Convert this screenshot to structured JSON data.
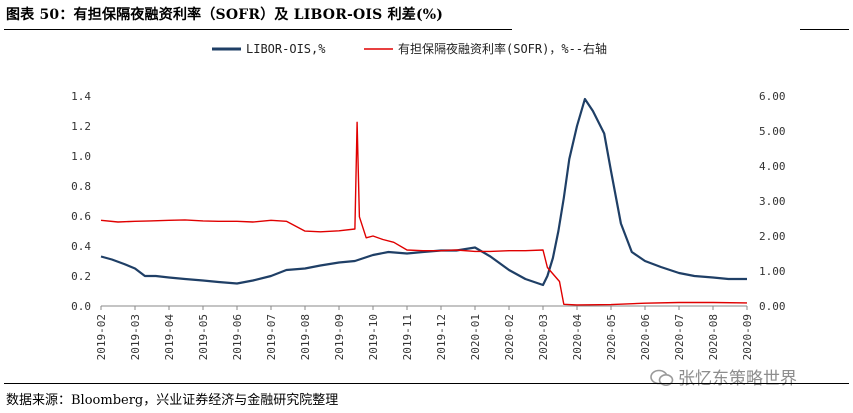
{
  "header": {
    "title": "图表 50：有担保隔夜融资利率（SOFR）及 LIBOR-OIS 利差(%)"
  },
  "footer": {
    "source": "数据来源：Bloomberg，兴业证券经济与金融研究院整理",
    "watermark": "张忆东策略世界"
  },
  "chart_data": {
    "type": "line",
    "legend_position": "top",
    "grid": false,
    "x_ticks": [
      "2019-02",
      "2019-03",
      "2019-04",
      "2019-05",
      "2019-06",
      "2019-07",
      "2019-08",
      "2019-09",
      "2019-10",
      "2019-11",
      "2019-12",
      "2020-01",
      "2020-02",
      "2020-03",
      "2020-04",
      "2020-05",
      "2020-06",
      "2020-07",
      "2020-08",
      "2020-09"
    ],
    "y_left": {
      "ticks": [
        "0.0",
        "0.2",
        "0.4",
        "0.6",
        "0.8",
        "1.0",
        "1.2",
        "1.4"
      ],
      "lim": [
        0,
        1.4
      ]
    },
    "y_right": {
      "ticks": [
        "0.00",
        "1.00",
        "2.00",
        "3.00",
        "4.00",
        "5.00",
        "6.00"
      ],
      "lim": [
        0,
        6
      ]
    },
    "series": [
      {
        "name": "LIBOR-OIS,%",
        "axis": "left",
        "color": "#1f3f66",
        "points": [
          [
            "2019-02-01",
            0.33
          ],
          [
            "2019-02-10",
            0.31
          ],
          [
            "2019-02-20",
            0.28
          ],
          [
            "2019-03-01",
            0.25
          ],
          [
            "2019-03-10",
            0.2
          ],
          [
            "2019-03-20",
            0.2
          ],
          [
            "2019-04-01",
            0.19
          ],
          [
            "2019-04-15",
            0.18
          ],
          [
            "2019-05-01",
            0.17
          ],
          [
            "2019-05-15",
            0.16
          ],
          [
            "2019-06-01",
            0.15
          ],
          [
            "2019-06-15",
            0.17
          ],
          [
            "2019-07-01",
            0.2
          ],
          [
            "2019-07-15",
            0.24
          ],
          [
            "2019-08-01",
            0.25
          ],
          [
            "2019-08-15",
            0.27
          ],
          [
            "2019-09-01",
            0.29
          ],
          [
            "2019-09-15",
            0.3
          ],
          [
            "2019-10-01",
            0.34
          ],
          [
            "2019-10-15",
            0.36
          ],
          [
            "2019-11-01",
            0.35
          ],
          [
            "2019-11-15",
            0.36
          ],
          [
            "2019-12-01",
            0.37
          ],
          [
            "2019-12-15",
            0.37
          ],
          [
            "2020-01-01",
            0.39
          ],
          [
            "2020-01-15",
            0.33
          ],
          [
            "2020-02-01",
            0.24
          ],
          [
            "2020-02-15",
            0.18
          ],
          [
            "2020-03-01",
            0.14
          ],
          [
            "2020-03-05",
            0.2
          ],
          [
            "2020-03-10",
            0.32
          ],
          [
            "2020-03-15",
            0.5
          ],
          [
            "2020-03-20",
            0.72
          ],
          [
            "2020-03-25",
            0.98
          ],
          [
            "2020-04-01",
            1.2
          ],
          [
            "2020-04-08",
            1.38
          ],
          [
            "2020-04-15",
            1.3
          ],
          [
            "2020-04-25",
            1.15
          ],
          [
            "2020-05-01",
            0.9
          ],
          [
            "2020-05-10",
            0.55
          ],
          [
            "2020-05-20",
            0.36
          ],
          [
            "2020-06-01",
            0.3
          ],
          [
            "2020-06-15",
            0.26
          ],
          [
            "2020-07-01",
            0.22
          ],
          [
            "2020-07-15",
            0.2
          ],
          [
            "2020-08-01",
            0.19
          ],
          [
            "2020-08-15",
            0.18
          ],
          [
            "2020-09-01",
            0.18
          ]
        ]
      },
      {
        "name": "有担保隔夜融资利率(SOFR)，%--右轴",
        "axis": "right",
        "color": "#e00000",
        "points": [
          [
            "2019-02-01",
            2.45
          ],
          [
            "2019-02-15",
            2.4
          ],
          [
            "2019-03-01",
            2.42
          ],
          [
            "2019-03-15",
            2.43
          ],
          [
            "2019-04-01",
            2.45
          ],
          [
            "2019-04-15",
            2.46
          ],
          [
            "2019-05-01",
            2.43
          ],
          [
            "2019-05-15",
            2.42
          ],
          [
            "2019-06-01",
            2.42
          ],
          [
            "2019-06-15",
            2.4
          ],
          [
            "2019-07-01",
            2.45
          ],
          [
            "2019-07-15",
            2.42
          ],
          [
            "2019-08-01",
            2.14
          ],
          [
            "2019-08-15",
            2.12
          ],
          [
            "2019-09-01",
            2.15
          ],
          [
            "2019-09-15",
            2.2
          ],
          [
            "2019-09-17",
            5.25
          ],
          [
            "2019-09-19",
            2.55
          ],
          [
            "2019-09-25",
            1.95
          ],
          [
            "2019-10-01",
            2.0
          ],
          [
            "2019-10-10",
            1.9
          ],
          [
            "2019-10-20",
            1.82
          ],
          [
            "2019-11-01",
            1.6
          ],
          [
            "2019-11-15",
            1.58
          ],
          [
            "2019-12-01",
            1.58
          ],
          [
            "2019-12-15",
            1.6
          ],
          [
            "2020-01-01",
            1.56
          ],
          [
            "2020-01-15",
            1.56
          ],
          [
            "2020-02-01",
            1.58
          ],
          [
            "2020-02-15",
            1.58
          ],
          [
            "2020-03-01",
            1.6
          ],
          [
            "2020-03-05",
            1.1
          ],
          [
            "2020-03-16",
            0.7
          ],
          [
            "2020-03-20",
            0.05
          ],
          [
            "2020-04-01",
            0.03
          ],
          [
            "2020-05-01",
            0.04
          ],
          [
            "2020-06-01",
            0.08
          ],
          [
            "2020-07-01",
            0.1
          ],
          [
            "2020-08-01",
            0.1
          ],
          [
            "2020-09-01",
            0.09
          ]
        ]
      }
    ]
  }
}
